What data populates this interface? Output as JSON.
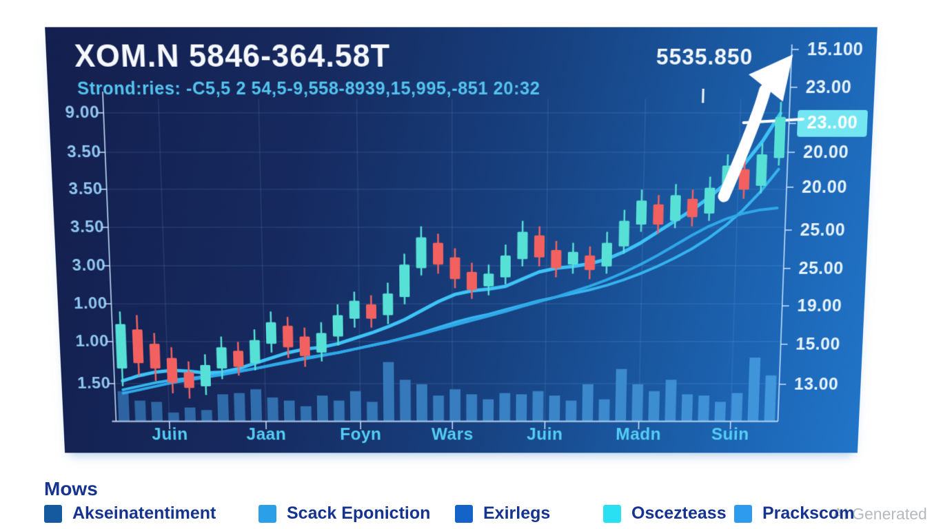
{
  "header": {
    "title": "XOM.N 5846-364.58T",
    "subtitle": "Strond:ries: -C5,5 2 54,5-9,558-8939,15,995,-851 20:32"
  },
  "annotation": {
    "value": "5535.850",
    "symbol": "up-right-arrow"
  },
  "axes": {
    "left_labels": [
      "9.00",
      "3.50",
      "3.50",
      "3.50",
      "3.00",
      "1.00",
      "1.00",
      "1.50"
    ],
    "right_labels": [
      "15.100",
      "23.00",
      "23..00",
      "20.00",
      "20.00",
      "25.00",
      "25.00",
      "19.00",
      "15.00",
      "13.00"
    ],
    "right_highlight_index": 2,
    "months": [
      "Juin",
      "Jaan",
      "Foyn",
      "Wars",
      "Juin",
      "Madn",
      "Suin"
    ]
  },
  "legend": {
    "title": "Mows",
    "items": [
      {
        "label": "Akseinatentiment",
        "color": "#15599f"
      },
      {
        "label": "Scack Eponiction",
        "color": "#2b9fe8"
      },
      {
        "label": "Exirlegs",
        "color": "#1463c8"
      },
      {
        "label": "Oscezteass",
        "color": "#29dff2"
      },
      {
        "label": "Prackscom",
        "color": "#2e9bef"
      }
    ]
  },
  "watermark": "AI Generated",
  "colors": {
    "candle_up": "#57e0d6",
    "candle_down": "#f2615f",
    "ma_fast": "#3ec3f7",
    "ma_mid": "#35b4ef",
    "ma_slow": "#2ea8e8",
    "trend_white": "#ffffff",
    "volume_left": "#2c63a0",
    "volume_right": "#4196dc",
    "grid": "rgba(150,200,250,0.13)",
    "axis": "rgba(200,230,255,0.75)",
    "highlight_bg": "#74e6f2"
  },
  "chart_data": {
    "type": "candlestick",
    "title": "XOM.N 5846-364.58T",
    "subtitle": "Strond:ries: -C5,5 2 54,5-9,558-8939,15,995,-851 20:32",
    "x_tick_labels": [
      "Juin",
      "Jaan",
      "Foyn",
      "Wars",
      "Juin",
      "Madn",
      "Suin"
    ],
    "y_axis_left_ticks": [
      "9.00",
      "3.50",
      "3.50",
      "3.50",
      "3.00",
      "1.00",
      "1.00",
      "1.50"
    ],
    "y_axis_right_ticks": [
      "15.100",
      "23.00",
      "23..00",
      "20.00",
      "20.00",
      "25.00",
      "25.00",
      "19.00",
      "15.00",
      "13.00"
    ],
    "highlighted_right_tick": "23..00",
    "annotation": {
      "label": "5535.850",
      "symbol": "up-right-arrow"
    },
    "price_scale": [
      12,
      30
    ],
    "ohlc": [
      [
        15.0,
        18.2,
        14.0,
        17.5
      ],
      [
        17.2,
        18.0,
        14.6,
        15.3
      ],
      [
        16.4,
        17.0,
        14.3,
        15.0
      ],
      [
        15.6,
        16.2,
        13.6,
        14.2
      ],
      [
        14.8,
        15.4,
        13.3,
        13.9
      ],
      [
        14.0,
        15.8,
        13.5,
        15.2
      ],
      [
        15.0,
        16.8,
        14.4,
        16.2
      ],
      [
        16.0,
        16.5,
        14.6,
        15.1
      ],
      [
        15.3,
        17.2,
        14.9,
        16.6
      ],
      [
        16.4,
        18.2,
        15.9,
        17.6
      ],
      [
        17.4,
        17.9,
        15.6,
        16.2
      ],
      [
        16.8,
        17.3,
        15.1,
        15.7
      ],
      [
        15.9,
        17.6,
        15.4,
        17.0
      ],
      [
        16.8,
        18.6,
        16.3,
        18.0
      ],
      [
        17.8,
        19.3,
        17.3,
        18.8
      ],
      [
        18.6,
        19.1,
        17.3,
        17.8
      ],
      [
        18.0,
        19.8,
        17.5,
        19.2
      ],
      [
        19.0,
        21.4,
        18.6,
        20.8
      ],
      [
        20.6,
        22.9,
        20.2,
        22.3
      ],
      [
        22.0,
        22.5,
        20.3,
        20.8
      ],
      [
        21.2,
        21.7,
        19.5,
        20.0
      ],
      [
        20.4,
        20.9,
        18.9,
        19.4
      ],
      [
        19.6,
        20.8,
        19.1,
        20.3
      ],
      [
        20.1,
        21.9,
        19.7,
        21.3
      ],
      [
        21.1,
        23.2,
        20.7,
        22.6
      ],
      [
        22.4,
        22.9,
        20.7,
        21.2
      ],
      [
        21.6,
        22.1,
        20.1,
        20.6
      ],
      [
        20.8,
        22.0,
        20.3,
        21.5
      ],
      [
        21.3,
        21.8,
        20.0,
        20.5
      ],
      [
        20.7,
        22.6,
        20.3,
        22.0
      ],
      [
        21.8,
        23.8,
        21.4,
        23.2
      ],
      [
        23.0,
        24.9,
        22.6,
        24.3
      ],
      [
        24.1,
        24.6,
        22.5,
        23.0
      ],
      [
        23.2,
        25.2,
        22.8,
        24.6
      ],
      [
        24.4,
        24.9,
        22.9,
        23.4
      ],
      [
        23.6,
        25.6,
        23.2,
        25.0
      ],
      [
        24.8,
        26.8,
        24.4,
        26.2
      ],
      [
        26.0,
        26.5,
        24.4,
        24.9
      ],
      [
        25.1,
        27.4,
        24.7,
        26.8
      ],
      [
        26.6,
        29.6,
        26.2,
        28.8
      ]
    ],
    "volume": [
      47,
      32,
      30,
      13,
      21,
      17,
      42,
      44,
      50,
      37,
      32,
      23,
      40,
      32,
      47,
      30,
      93,
      65,
      58,
      40,
      50,
      42,
      34,
      44,
      42,
      47,
      40,
      32,
      58,
      34,
      82,
      58,
      47,
      65,
      42,
      40,
      30,
      44,
      100,
      72
    ],
    "overlays": [
      {
        "name": "ma-fast",
        "values": [
          14.3,
          14.6,
          14.8,
          14.9,
          14.85,
          14.75,
          14.8,
          15.0,
          15.3,
          15.6,
          15.9,
          16.1,
          16.2,
          16.4,
          16.7,
          17.0,
          17.35,
          17.75,
          18.25,
          18.75,
          19.15,
          19.35,
          19.45,
          19.6,
          20.0,
          20.4,
          20.6,
          20.7,
          20.85,
          21.1,
          21.5,
          22.0,
          22.6,
          23.2,
          23.8,
          24.5,
          25.3,
          26.3,
          27.5,
          29.0
        ]
      },
      {
        "name": "ma-mid",
        "values": [
          13.8,
          14.0,
          14.2,
          14.35,
          14.45,
          14.55,
          14.7,
          14.85,
          15.0,
          15.2,
          15.4,
          15.6,
          15.75,
          15.9,
          16.1,
          16.3,
          16.5,
          16.75,
          17.0,
          17.3,
          17.6,
          17.85,
          18.05,
          18.3,
          18.55,
          18.8,
          19.0,
          19.2,
          19.4,
          19.65,
          19.95,
          20.3,
          20.7,
          21.15,
          21.65,
          22.25,
          22.95,
          23.8,
          24.8,
          26.0
        ]
      },
      {
        "name": "ma-slow",
        "values": [
          13.6,
          13.8,
          14.0,
          14.2,
          14.35,
          14.5,
          14.65,
          14.82,
          15.0,
          15.18,
          15.36,
          15.55,
          15.72,
          15.9,
          16.1,
          16.3,
          16.5,
          16.72,
          16.95,
          17.2,
          17.45,
          17.7,
          17.95,
          18.2,
          18.48,
          18.75,
          19.0,
          19.3,
          19.6,
          19.95,
          20.35,
          20.8,
          21.3,
          21.85,
          22.4,
          22.9,
          23.3,
          23.6,
          23.8,
          23.9
        ]
      }
    ],
    "layout": {
      "grid": true,
      "legend_position": "bottom",
      "volume_panel": true
    }
  }
}
